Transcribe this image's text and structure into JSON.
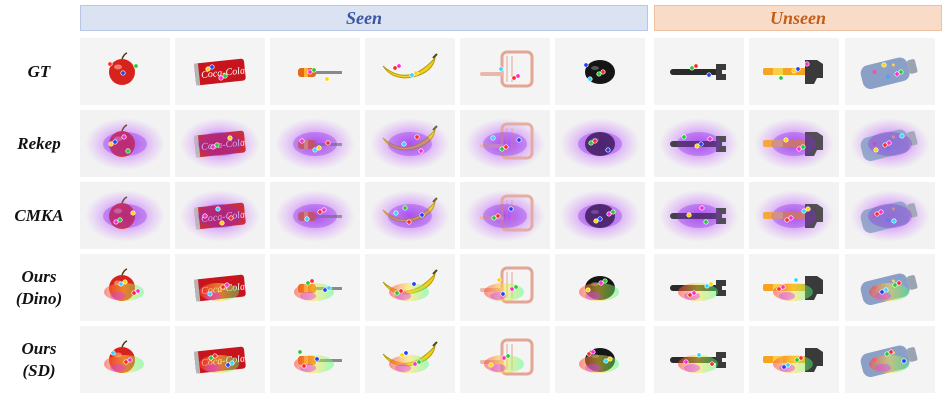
{
  "header": {
    "seen_label": "Seen",
    "unseen_label": "Unseen"
  },
  "rows": [
    {
      "id": "gt",
      "lines": [
        "GT"
      ]
    },
    {
      "id": "rekep",
      "lines": [
        "Rekep"
      ]
    },
    {
      "id": "cmka",
      "lines": [
        "CMKA"
      ]
    },
    {
      "id": "ours-dino",
      "lines": [
        "Ours",
        "(Dino)"
      ]
    },
    {
      "id": "ours-sd",
      "lines": [
        "Ours",
        "(SD)"
      ]
    }
  ],
  "objects": [
    "apple",
    "coke-can",
    "screwdriver",
    "banana",
    "dustpan",
    "mouse",
    "wrench",
    "hammer",
    "bottle"
  ]
}
